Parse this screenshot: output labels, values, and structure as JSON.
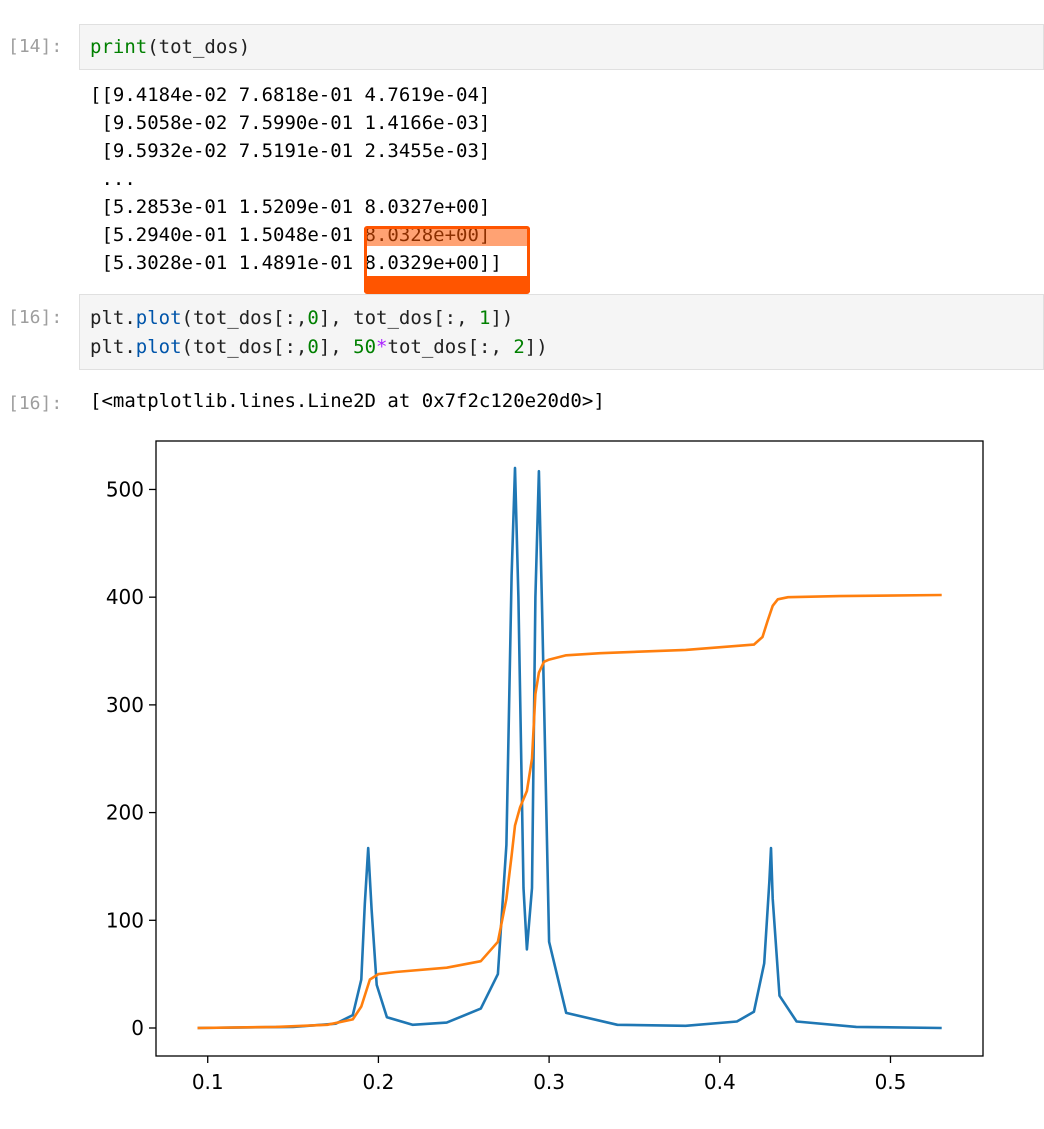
{
  "cells": {
    "c14": {
      "prompt": "[14]:",
      "code": {
        "fn": "print",
        "open": "(",
        "arg": "tot_dos",
        "close": ")"
      },
      "output": [
        "[[9.4184e-02 7.6818e-01 4.7619e-04]",
        " [9.5058e-02 7.5990e-01 1.4166e-03]",
        " [9.5932e-02 7.5191e-01 2.3455e-03]",
        " ...",
        " [5.2853e-01 1.5209e-01 8.0327e+00]",
        " [5.2940e-01 1.5048e-01 8.0328e+00]",
        " [5.3028e-01 1.4891e-01 8.0329e+00]]"
      ],
      "highlight_color": "#ff5500"
    },
    "c16": {
      "prompt_in": "[16]:",
      "prompt_out": "[16]:",
      "line1": {
        "a": "plt.",
        "b": "plot",
        "c": "(tot_dos[:,",
        "d": "0",
        "e": "], tot_dos[:, ",
        "f": "1",
        "g": "])"
      },
      "line2": {
        "a": "plt.",
        "b": "plot",
        "c": "(tot_dos[:,",
        "d": "0",
        "e": "], ",
        "f": "50",
        "g": "*",
        "h": "tot_dos[:, ",
        "i": "2",
        "j": "])"
      },
      "output": "[<matplotlib.lines.Line2D at 0x7f2c120e20d0>]"
    }
  },
  "chart_data": {
    "type": "line",
    "title": "",
    "xlabel": "",
    "ylabel": "",
    "xlim": [
      0.0697,
      0.5542
    ],
    "ylim": [
      -26,
      545
    ],
    "xticks": [
      0.1,
      0.2,
      0.3,
      0.4,
      0.5
    ],
    "xtick_labels": [
      "0.1",
      "0.2",
      "0.3",
      "0.4",
      "0.5"
    ],
    "yticks": [
      0,
      100,
      200,
      300,
      400,
      500
    ],
    "ytick_labels": [
      "0",
      "100",
      "200",
      "300",
      "400",
      "500"
    ],
    "series": [
      {
        "name": "tot_dos[:,1]",
        "color": "#1f77b4",
        "x": [
          0.094,
          0.15,
          0.175,
          0.185,
          0.19,
          0.192,
          0.194,
          0.196,
          0.199,
          0.205,
          0.22,
          0.24,
          0.26,
          0.27,
          0.275,
          0.278,
          0.28,
          0.282,
          0.285,
          0.287,
          0.29,
          0.292,
          0.294,
          0.296,
          0.3,
          0.31,
          0.34,
          0.38,
          0.41,
          0.42,
          0.426,
          0.429,
          0.43,
          0.431,
          0.435,
          0.445,
          0.48,
          0.53
        ],
        "y": [
          0,
          1,
          4,
          12,
          45,
          115,
          167,
          110,
          40,
          10,
          3,
          5,
          18,
          50,
          170,
          420,
          520,
          400,
          130,
          73,
          130,
          400,
          517,
          380,
          80,
          14,
          3,
          2,
          6,
          15,
          60,
          135,
          167,
          120,
          30,
          6,
          1,
          0
        ]
      },
      {
        "name": "50*tot_dos[:,2]",
        "color": "#ff7f0e",
        "x": [
          0.094,
          0.14,
          0.17,
          0.185,
          0.19,
          0.195,
          0.2,
          0.21,
          0.24,
          0.26,
          0.27,
          0.275,
          0.278,
          0.28,
          0.283,
          0.287,
          0.29,
          0.292,
          0.294,
          0.297,
          0.3,
          0.31,
          0.33,
          0.38,
          0.42,
          0.425,
          0.428,
          0.431,
          0.434,
          0.44,
          0.47,
          0.53
        ],
        "y": [
          0,
          1,
          3,
          8,
          20,
          45,
          50,
          52,
          56,
          62,
          80,
          120,
          160,
          188,
          205,
          220,
          250,
          310,
          330,
          340,
          342,
          346,
          348,
          351,
          356,
          363,
          378,
          392,
          398,
          400,
          401,
          402
        ]
      }
    ]
  }
}
